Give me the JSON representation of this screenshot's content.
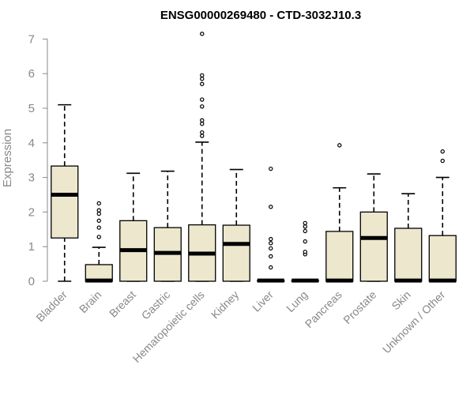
{
  "chart_data": {
    "type": "boxplot",
    "title": "ENSG00000269480 - CTD-3032J10.3",
    "ylabel": "Expression",
    "xlabel": "",
    "ylim": [
      0,
      7
    ],
    "yticks": [
      0,
      1,
      2,
      3,
      4,
      5,
      6,
      7
    ],
    "grid": false,
    "box_fill": "#ede7cd",
    "categories": [
      "Bladder",
      "Brain",
      "Breast",
      "Gastric",
      "Hematopoietic cells",
      "Kidney",
      "Liver",
      "Lung",
      "Pancreas",
      "Prostate",
      "Skin",
      "Unknown / Other"
    ],
    "boxes": [
      {
        "min": 0,
        "q1": 1.25,
        "median": 2.5,
        "q3": 3.33,
        "max": 5.1,
        "outliers": []
      },
      {
        "min": 0,
        "q1": 0,
        "median": 0.02,
        "q3": 0.48,
        "max": 0.98,
        "outliers": [
          1.28,
          1.55,
          1.75,
          1.95,
          2.05,
          2.25
        ]
      },
      {
        "min": 0,
        "q1": 0,
        "median": 0.9,
        "q3": 1.75,
        "max": 3.12,
        "outliers": []
      },
      {
        "min": 0,
        "q1": 0,
        "median": 0.82,
        "q3": 1.55,
        "max": 3.18,
        "outliers": []
      },
      {
        "min": 0,
        "q1": 0,
        "median": 0.8,
        "q3": 1.63,
        "max": 4.02,
        "outliers": [
          4.2,
          4.3,
          4.55,
          4.65,
          5.05,
          5.25,
          5.7,
          5.85,
          5.95,
          7.15
        ]
      },
      {
        "min": 0,
        "q1": 0,
        "median": 1.08,
        "q3": 1.62,
        "max": 3.23,
        "outliers": []
      },
      {
        "min": 0,
        "q1": 0,
        "median": 0.02,
        "q3": 0.02,
        "max": 0.02,
        "outliers": [
          0.4,
          0.72,
          0.95,
          1.1,
          1.22,
          2.15,
          3.25
        ]
      },
      {
        "min": 0,
        "q1": 0,
        "median": 0.02,
        "q3": 0.02,
        "max": 0.02,
        "outliers": [
          0.78,
          0.85,
          1.15,
          1.45,
          1.58,
          1.68
        ]
      },
      {
        "min": 0,
        "q1": 0,
        "median": 0.02,
        "q3": 1.44,
        "max": 2.7,
        "outliers": [
          3.93
        ]
      },
      {
        "min": 0,
        "q1": 0,
        "median": 1.25,
        "q3": 2.0,
        "max": 3.1,
        "outliers": []
      },
      {
        "min": 0,
        "q1": 0,
        "median": 0.02,
        "q3": 1.53,
        "max": 2.53,
        "outliers": []
      },
      {
        "min": 0,
        "q1": 0,
        "median": 0.02,
        "q3": 1.32,
        "max": 3.0,
        "outliers": [
          3.48,
          3.75
        ]
      }
    ]
  }
}
